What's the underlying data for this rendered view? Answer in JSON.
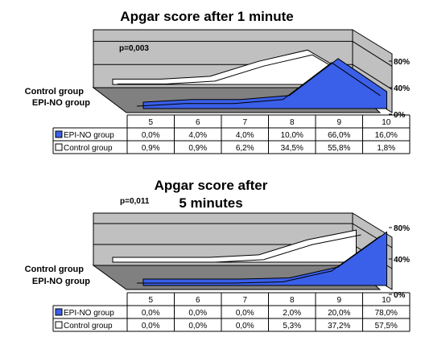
{
  "chart_data": [
    {
      "type": "area",
      "title": "Apgar score after 1 minute",
      "annotation": "p=0,003",
      "categories": [
        "5",
        "6",
        "7",
        "8",
        "9",
        "10"
      ],
      "y_ticks": [
        "80%",
        "40%",
        "0%"
      ],
      "ylim": [
        0,
        100
      ],
      "grid": true,
      "series_axis_labels": [
        "Control group",
        "EPI-NO group"
      ],
      "series": [
        {
          "name": "EPI-NO group",
          "color": "#3a5fe8",
          "legend_marker": "blue-square",
          "values": [
            0.0,
            4.0,
            4.0,
            10.0,
            66.0,
            16.0
          ],
          "labels": [
            "0,0%",
            "4,0%",
            "4,0%",
            "10,0%",
            "66,0%",
            "16,0%"
          ]
        },
        {
          "name": "Control group",
          "color": "#ffffff",
          "legend_marker": "white-square",
          "values": [
            0.9,
            0.9,
            6.2,
            34.5,
            55.8,
            1.8
          ],
          "labels": [
            "0,9%",
            "0,9%",
            "6,2%",
            "34,5%",
            "55,8%",
            "1,8%"
          ]
        }
      ]
    },
    {
      "type": "area",
      "title": "Apgar score after 5 minutes",
      "title_lines": [
        "Apgar score after",
        "5 minutes"
      ],
      "annotation": "p=0,011",
      "categories": [
        "5",
        "6",
        "7",
        "8",
        "9",
        "10"
      ],
      "y_ticks": [
        "80%",
        "40%",
        "0%"
      ],
      "ylim": [
        0,
        100
      ],
      "grid": true,
      "series_axis_labels": [
        "Control group",
        "EPI-NO group"
      ],
      "series": [
        {
          "name": "EPI-NO group",
          "color": "#3a5fe8",
          "legend_marker": "blue-square",
          "values": [
            0.0,
            0.0,
            0.0,
            2.0,
            20.0,
            78.0
          ],
          "labels": [
            "0,0%",
            "0,0%",
            "0,0%",
            "2,0%",
            "20,0%",
            "78,0%"
          ]
        },
        {
          "name": "Control group",
          "color": "#ffffff",
          "legend_marker": "white-square",
          "values": [
            0.0,
            0.0,
            0.0,
            5.3,
            37.2,
            57.5
          ],
          "labels": [
            "0,0%",
            "0,0%",
            "0,0%",
            "5,3%",
            "37,2%",
            "57,5%"
          ]
        }
      ]
    }
  ]
}
